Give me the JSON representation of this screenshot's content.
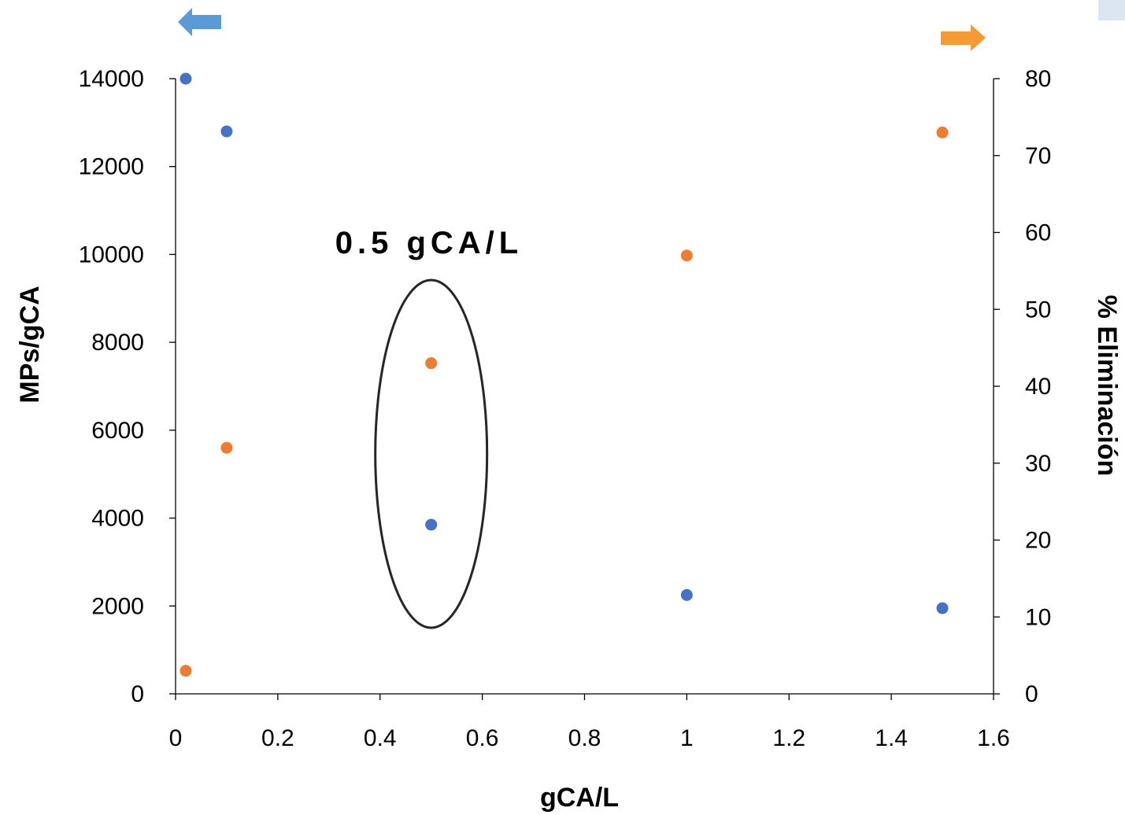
{
  "chart_data": {
    "type": "scatter",
    "xlabel": "gCA/L",
    "ylabel_left": "MPs/gCA",
    "ylabel_right": "% Eliminación",
    "xlim": [
      0,
      1.6
    ],
    "xticks": [
      0,
      0.2,
      0.4,
      0.6,
      0.8,
      1,
      1.2,
      1.4,
      1.6
    ],
    "ylim_left": [
      0,
      14000
    ],
    "yticks_left": [
      0,
      2000,
      4000,
      6000,
      8000,
      10000,
      12000,
      14000
    ],
    "ylim_right": [
      0,
      80
    ],
    "yticks_right": [
      0,
      10,
      20,
      30,
      40,
      50,
      60,
      70,
      80
    ],
    "grid": false,
    "annotation": {
      "text": "0.5 gCA/L",
      "x": 0.5
    },
    "series": [
      {
        "axis": "left",
        "color": "#4472C4",
        "x": [
          0.02,
          0.1,
          0.5,
          1.0,
          1.5
        ],
        "y": [
          14000,
          12800,
          3850,
          2250,
          1950
        ]
      },
      {
        "axis": "right",
        "color": "#ED7D31",
        "x": [
          0.02,
          0.1,
          0.5,
          1.0,
          1.5
        ],
        "y": [
          3,
          32,
          43,
          57,
          73
        ]
      }
    ],
    "indicators": [
      {
        "icon": "left-arrow-icon",
        "color": "#5B9BD5"
      },
      {
        "icon": "right-arrow-icon",
        "color": "#F79A34"
      }
    ]
  }
}
